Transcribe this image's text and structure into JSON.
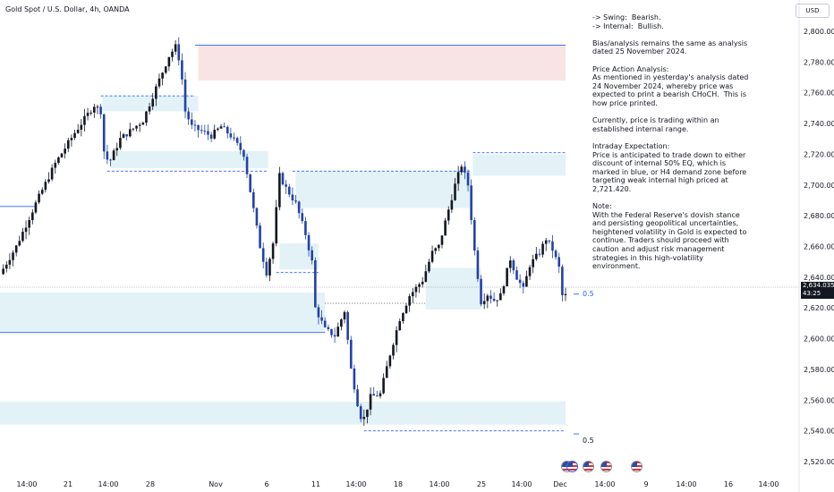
{
  "header": {
    "title": "Gold Spot / U.S. Dollar, 4h, OANDA"
  },
  "currency_button": "USD",
  "analysis_lines": [
    "-> Swing:  Bearish.",
    "-> Internal:  Bullish.",
    "",
    "Bias/analysis remains the same as analysis dated 25 November 2024.",
    "",
    "Price Action Analysis:",
    "As mentioned in yesterday's analysis dated 24 November 2024, whereby price was expected to print a bearish CHoCH.  This is how price printed.",
    "",
    "Currently, price is trading within an established internal range.",
    "",
    "Intraday Expectation:",
    "Price is anticipated to trade down to either discount of internal 50% EQ, which is marked in blue, or H4 demand zone before targeting weak internal high priced at 2,721.420.",
    "",
    "Note:",
    "With the Federal Reserve's dovish stance and persisting geopolitical uncertainties, heightened volatility in Gold is expected to continue. Traders should proceed with caution and adjust risk management strategies in this high-volatility environment."
  ],
  "price_tag": {
    "price": "2,634.035",
    "countdown": "43:25"
  },
  "eq_labels": [
    "0.5",
    "0.5"
  ],
  "colors": {
    "bull": "#131722",
    "bear": "#2142a8",
    "demand_zone": "#e3f2f6",
    "supply_zone": "#f8e4e4",
    "bos_line": "#2962ff"
  },
  "chart_data": {
    "type": "candlestick",
    "title": "Gold Spot / U.S. Dollar, 4h, OANDA",
    "ylim": [
      2515,
      2812
    ],
    "y_ticks": [
      2520,
      2540,
      2560,
      2580,
      2600,
      2620,
      2640,
      2660,
      2680,
      2700,
      2720,
      2740,
      2760,
      2780,
      2800
    ],
    "y_tick_labels": [
      "2,520.000",
      "2,540.000",
      "2,560.000",
      "2,580.000",
      "2,600.000",
      "2,620.000",
      "2,640.000",
      "2,660.000",
      "2,680.000",
      "2,700.000",
      "2,720.000",
      "2,740.000",
      "2,760.000",
      "2,780.000",
      "2,800.000"
    ],
    "x_tick_labels": [
      "14:00",
      "21",
      "14:00",
      "28",
      "Nov",
      "6",
      "11",
      "14:00",
      "18",
      "14:00",
      "25",
      "14:00",
      "Dec",
      "14:00",
      "9",
      "14:00",
      "16",
      "14:00"
    ],
    "last_price": 2634.035,
    "waypoints": [
      [
        0,
        2642
      ],
      [
        10,
        2660
      ],
      [
        22,
        2688
      ],
      [
        34,
        2714
      ],
      [
        46,
        2734
      ],
      [
        58,
        2752
      ],
      [
        62,
        2748
      ],
      [
        64,
        2722
      ],
      [
        67,
        2714
      ],
      [
        74,
        2730
      ],
      [
        80,
        2735
      ],
      [
        88,
        2742
      ],
      [
        94,
        2758
      ],
      [
        104,
        2784
      ],
      [
        108,
        2790
      ],
      [
        111,
        2779
      ],
      [
        114,
        2748
      ],
      [
        118,
        2738
      ],
      [
        124,
        2735
      ],
      [
        130,
        2732
      ],
      [
        136,
        2738
      ],
      [
        142,
        2732
      ],
      [
        150,
        2720
      ],
      [
        155,
        2690
      ],
      [
        160,
        2660
      ],
      [
        164,
        2643
      ],
      [
        168,
        2662
      ],
      [
        172,
        2706
      ],
      [
        176,
        2698
      ],
      [
        182,
        2688
      ],
      [
        188,
        2668
      ],
      [
        192,
        2650
      ],
      [
        194,
        2620
      ],
      [
        200,
        2606
      ],
      [
        206,
        2602
      ],
      [
        212,
        2618
      ],
      [
        216,
        2580
      ],
      [
        220,
        2558
      ],
      [
        223,
        2545
      ],
      [
        228,
        2562
      ],
      [
        234,
        2564
      ],
      [
        240,
        2590
      ],
      [
        246,
        2613
      ],
      [
        252,
        2628
      ],
      [
        260,
        2638
      ],
      [
        266,
        2656
      ],
      [
        270,
        2660
      ],
      [
        275,
        2680
      ],
      [
        280,
        2700
      ],
      [
        284,
        2713
      ],
      [
        288,
        2700
      ],
      [
        292,
        2657
      ],
      [
        296,
        2624
      ],
      [
        300,
        2629
      ],
      [
        304,
        2625
      ],
      [
        308,
        2628
      ],
      [
        314,
        2652
      ],
      [
        318,
        2640
      ],
      [
        322,
        2632
      ],
      [
        326,
        2648
      ],
      [
        332,
        2656
      ],
      [
        336,
        2665
      ],
      [
        340,
        2658
      ],
      [
        344,
        2646
      ],
      [
        346,
        2628
      ]
    ],
    "zones": [
      {
        "kind": "supply",
        "t0": 122,
        "t1": 348,
        "y0": 2768,
        "y1": 2791
      },
      {
        "kind": "demand",
        "t0": 63,
        "t1": 122,
        "y0": 2748,
        "y1": 2758
      },
      {
        "kind": "demand",
        "t0": 68,
        "t1": 165,
        "y0": 2711,
        "y1": 2722
      },
      {
        "kind": "demand",
        "t0": 182,
        "t1": 290,
        "y0": 2685,
        "y1": 2709
      },
      {
        "kind": "demand",
        "t0": 172,
        "t1": 196,
        "y0": 2645,
        "y1": 2662
      },
      {
        "kind": "demand",
        "t0": 0,
        "t1": 200,
        "y0": 2604,
        "y1": 2630
      },
      {
        "kind": "demand",
        "t0": 262,
        "t1": 296,
        "y0": 2619,
        "y1": 2646
      },
      {
        "kind": "demand",
        "t0": 291,
        "t1": 348,
        "y0": 2706,
        "y1": 2720
      },
      {
        "kind": "demand",
        "t0": 0,
        "t1": 348,
        "y0": 2544,
        "y1": 2559
      }
    ],
    "level_lines": [
      {
        "t0": 120,
        "t1": 348,
        "y": 2791,
        "style": "solid"
      },
      {
        "t0": 0,
        "t1": 22,
        "y": 2686,
        "style": "solid"
      },
      {
        "t0": 0,
        "t1": 200,
        "y": 2604,
        "style": "solid"
      },
      {
        "t0": 62,
        "t1": 120,
        "y": 2758,
        "style": "dashed"
      },
      {
        "t0": 66,
        "t1": 165,
        "y": 2709,
        "style": "dashed"
      },
      {
        "t0": 180,
        "t1": 290,
        "y": 2709,
        "style": "dashed"
      },
      {
        "t0": 170,
        "t1": 196,
        "y": 2643,
        "style": "dashed"
      },
      {
        "t0": 291,
        "t1": 348,
        "y": 2721,
        "style": "dashed"
      },
      {
        "t0": 224,
        "t1": 348,
        "y": 2540,
        "style": "dashed"
      },
      {
        "t0": 200,
        "t1": 262,
        "y": 2623,
        "style": "dotted"
      }
    ],
    "eq_levels": [
      2629,
      2538
    ]
  }
}
